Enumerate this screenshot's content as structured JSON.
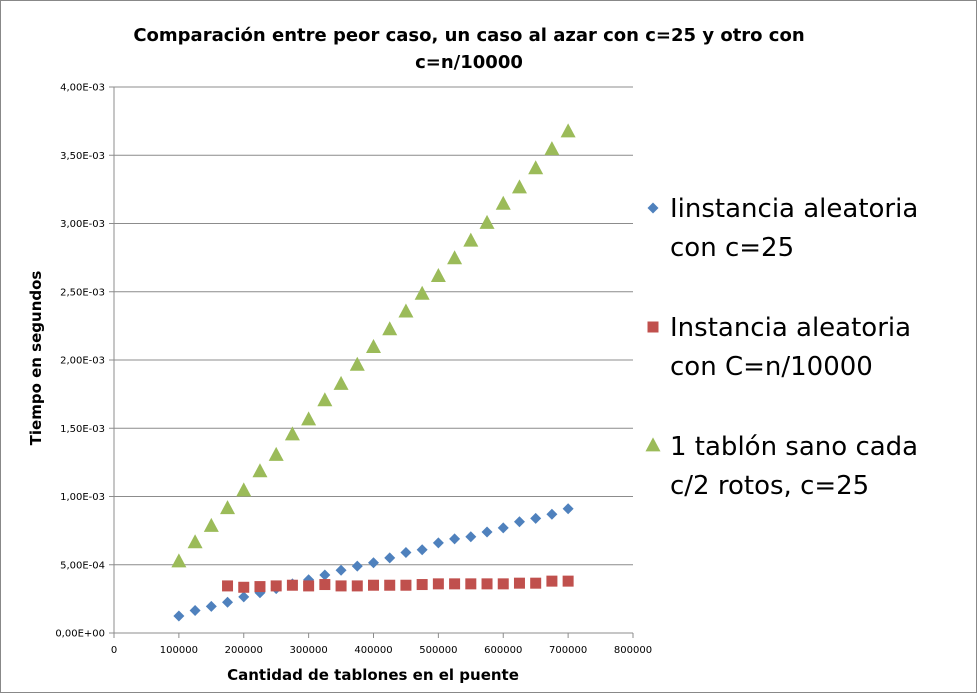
{
  "chart_data": {
    "type": "scatter",
    "title_lines": [
      "Comparación entre peor caso, un caso al azar con c=25 y otro con",
      "c=n/10000"
    ],
    "xlabel": "Cantidad de tablones en el puente",
    "ylabel": "Tiempo en segundos",
    "xlim": [
      0,
      800000
    ],
    "ylim": [
      0,
      0.004
    ],
    "x_ticks": [
      {
        "value": 0,
        "label": "0"
      },
      {
        "value": 100000,
        "label": "100000"
      },
      {
        "value": 200000,
        "label": "200000"
      },
      {
        "value": 300000,
        "label": "300000"
      },
      {
        "value": 400000,
        "label": "400000"
      },
      {
        "value": 500000,
        "label": "500000"
      },
      {
        "value": 600000,
        "label": "600000"
      },
      {
        "value": 700000,
        "label": "700000"
      },
      {
        "value": 800000,
        "label": "800000"
      }
    ],
    "y_ticks": [
      {
        "value": 0,
        "label": "0,00E+00"
      },
      {
        "value": 0.0005,
        "label": "5,00E-04"
      },
      {
        "value": 0.001,
        "label": "1,00E-03"
      },
      {
        "value": 0.0015,
        "label": "1,50E-03"
      },
      {
        "value": 0.002,
        "label": "2,00E-03"
      },
      {
        "value": 0.0025,
        "label": "2,50E-03"
      },
      {
        "value": 0.003,
        "label": "3,00E-03"
      },
      {
        "value": 0.0035,
        "label": "3,50E-03"
      },
      {
        "value": 0.004,
        "label": "4,00E-03"
      }
    ],
    "grid": "horizontal",
    "legend_position": "right",
    "series": [
      {
        "name_lines": [
          "Iinstancia aleatoria",
          "con c=25"
        ],
        "marker": "diamond",
        "color": "#4F81BD",
        "points": [
          [
            100000,
            0.000125
          ],
          [
            125000,
            0.000165
          ],
          [
            150000,
            0.000195
          ],
          [
            175000,
            0.000225
          ],
          [
            200000,
            0.000265
          ],
          [
            225000,
            0.000295
          ],
          [
            250000,
            0.000325
          ],
          [
            275000,
            0.00036
          ],
          [
            300000,
            0.00039
          ],
          [
            325000,
            0.000425
          ],
          [
            350000,
            0.00046
          ],
          [
            375000,
            0.00049
          ],
          [
            400000,
            0.000515
          ],
          [
            425000,
            0.00055
          ],
          [
            450000,
            0.00059
          ],
          [
            475000,
            0.00061
          ],
          [
            500000,
            0.00066
          ],
          [
            525000,
            0.00069
          ],
          [
            550000,
            0.000705
          ],
          [
            575000,
            0.00074
          ],
          [
            600000,
            0.00077
          ],
          [
            625000,
            0.000815
          ],
          [
            650000,
            0.00084
          ],
          [
            675000,
            0.00087
          ],
          [
            700000,
            0.00091
          ]
        ]
      },
      {
        "name_lines": [
          "Instancia aleatoria",
          "con C=n/10000"
        ],
        "marker": "square",
        "color": "#C0504D",
        "points": [
          [
            175000,
            0.000345
          ],
          [
            200000,
            0.000335
          ],
          [
            225000,
            0.00034
          ],
          [
            250000,
            0.000345
          ],
          [
            275000,
            0.00035
          ],
          [
            300000,
            0.000345
          ],
          [
            325000,
            0.000355
          ],
          [
            350000,
            0.000345
          ],
          [
            375000,
            0.000345
          ],
          [
            400000,
            0.00035
          ],
          [
            425000,
            0.00035
          ],
          [
            450000,
            0.00035
          ],
          [
            475000,
            0.000355
          ],
          [
            500000,
            0.00036
          ],
          [
            525000,
            0.00036
          ],
          [
            550000,
            0.00036
          ],
          [
            575000,
            0.00036
          ],
          [
            600000,
            0.00036
          ],
          [
            625000,
            0.000365
          ],
          [
            650000,
            0.000365
          ],
          [
            675000,
            0.00038
          ],
          [
            700000,
            0.00038
          ]
        ]
      },
      {
        "name_lines": [
          "1 tablón sano cada",
          "c/2 rotos, c=25"
        ],
        "marker": "triangle",
        "color": "#9BBB59",
        "points": [
          [
            100000,
            0.00052
          ],
          [
            125000,
            0.00066
          ],
          [
            150000,
            0.00078
          ],
          [
            175000,
            0.00091
          ],
          [
            200000,
            0.00104
          ],
          [
            225000,
            0.00118
          ],
          [
            250000,
            0.0013
          ],
          [
            275000,
            0.00145
          ],
          [
            300000,
            0.00156
          ],
          [
            325000,
            0.0017
          ],
          [
            350000,
            0.00182
          ],
          [
            375000,
            0.00196
          ],
          [
            400000,
            0.00209
          ],
          [
            425000,
            0.00222
          ],
          [
            450000,
            0.00235
          ],
          [
            475000,
            0.00248
          ],
          [
            500000,
            0.00261
          ],
          [
            525000,
            0.00274
          ],
          [
            550000,
            0.00287
          ],
          [
            575000,
            0.003
          ],
          [
            600000,
            0.00314
          ],
          [
            625000,
            0.00326
          ],
          [
            650000,
            0.0034
          ],
          [
            675000,
            0.00354
          ],
          [
            700000,
            0.00367
          ]
        ]
      }
    ]
  }
}
